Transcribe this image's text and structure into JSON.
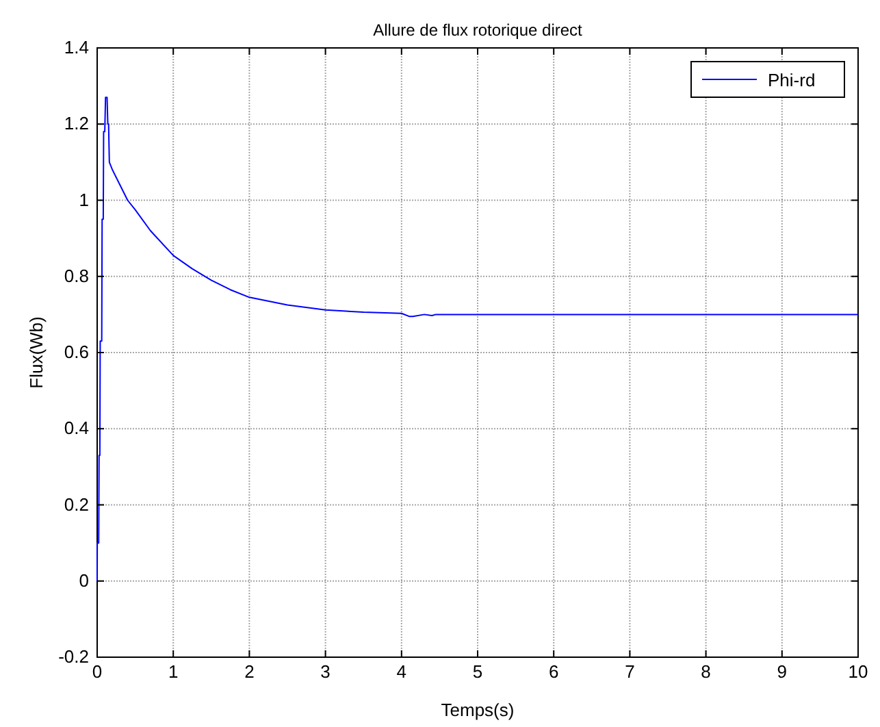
{
  "chart_data": {
    "type": "line",
    "title": "Allure de flux rotorique direct",
    "xlabel": "Temps(s)",
    "ylabel": "Flux(Wb)",
    "xlim": [
      0,
      10
    ],
    "xticks": [
      0,
      1,
      2,
      3,
      4,
      5,
      6,
      7,
      8,
      9,
      10
    ],
    "ylim": [
      -0.2,
      1.4
    ],
    "yticks": [
      -0.2,
      0,
      0.2,
      0.4,
      0.6,
      0.8,
      1,
      1.2,
      1.4
    ],
    "grid": true,
    "legend": "top right",
    "series": [
      {
        "name": "Phi-rd",
        "color": "#0000ff",
        "x": [
          0,
          0.001,
          0.02,
          0.025,
          0.035,
          0.04,
          0.06,
          0.065,
          0.08,
          0.085,
          0.1,
          0.11,
          0.13,
          0.14,
          0.15,
          0.16,
          0.2,
          0.3,
          0.4,
          0.5,
          0.7,
          1,
          1.25,
          1.5,
          1.75,
          2,
          2.5,
          3,
          3.5,
          4,
          4.1,
          4.15,
          4.3,
          4.4,
          4.45,
          5,
          6,
          7,
          8,
          9,
          10
        ],
        "values": [
          0,
          0.1,
          0.1,
          0.33,
          0.33,
          0.63,
          0.63,
          0.95,
          0.95,
          1.18,
          1.18,
          1.27,
          1.27,
          1.2,
          1.2,
          1.1,
          1.08,
          1.04,
          1.0,
          0.975,
          0.92,
          0.855,
          0.82,
          0.79,
          0.765,
          0.745,
          0.725,
          0.712,
          0.706,
          0.703,
          0.695,
          0.695,
          0.7,
          0.697,
          0.7,
          0.7,
          0.7,
          0.7,
          0.7,
          0.7,
          0.7
        ]
      }
    ]
  }
}
